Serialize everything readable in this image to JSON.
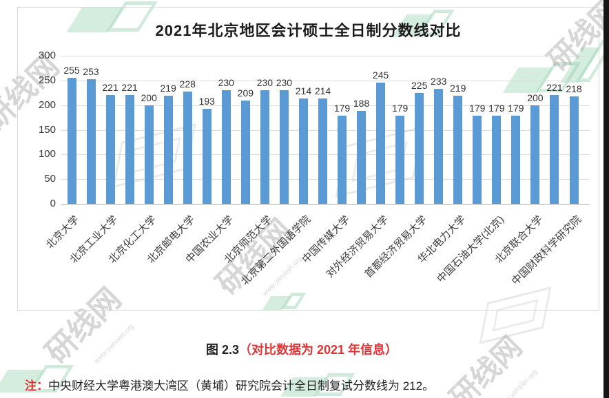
{
  "watermark": {
    "text": "研线网",
    "url": "www.yanxian.org"
  },
  "caption": {
    "prefix": "图 2.3",
    "detail": "（对比数据为 2021 年信息）"
  },
  "note": {
    "prefix": "注：",
    "text": "中央财经大学粤港澳大湾区（黄埔）研究院会计全日制复试分数线为 212。"
  },
  "colors": {
    "bar": "#5b9bd5",
    "accent_red": "#e03434",
    "gridline": "#dcdcdc",
    "watermark_green": "#a8d9bd",
    "watermark_gray": "#9e9e9e"
  },
  "chart_data": {
    "type": "bar",
    "title": "2021年北京地区会计硕士全日制分数线对比",
    "values": [
      255,
      253,
      221,
      221,
      200,
      219,
      228,
      193,
      230,
      209,
      230,
      230,
      214,
      214,
      179,
      188,
      245,
      179,
      225,
      233,
      219,
      179,
      179,
      179,
      200,
      221,
      218
    ],
    "categories": [
      "北京大学",
      "",
      "北京工业大学",
      "",
      "北京化工大学",
      "",
      "北京邮电大学",
      "",
      "中国农业大学",
      "",
      "北京师范大学",
      "",
      "北京第二外国语学院",
      "",
      "中国传媒大学",
      "",
      "对外经济贸易大学",
      "",
      "首都经济贸易大学",
      "",
      "华北电力大学",
      "",
      "中国石油大学(北京)",
      "",
      "北京联合大学",
      "",
      "中国财政科学研究院"
    ],
    "xlabel": "",
    "ylabel": "",
    "ylim": [
      0,
      300
    ],
    "y_ticks": [
      0,
      50,
      100,
      150,
      200,
      250,
      300
    ],
    "bar_color": "#5b9bd5",
    "gridlines": true,
    "legend": "none",
    "value_labels": true,
    "note": "x-axis shows every other bar's label; 27 bars total"
  }
}
